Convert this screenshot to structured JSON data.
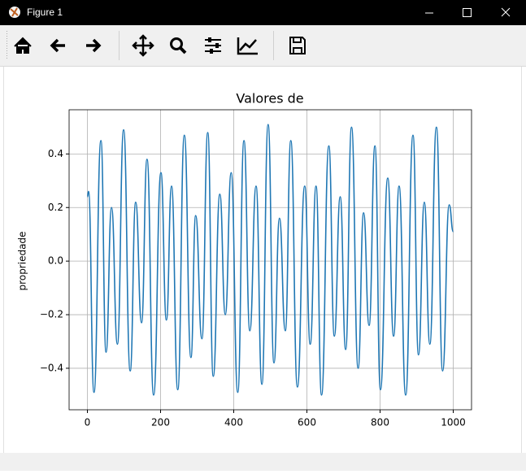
{
  "window": {
    "title": "Figure 1"
  },
  "chart_data": {
    "type": "line",
    "title": "Valores de",
    "y_label": "propriedade",
    "x": [
      0,
      3,
      18,
      37,
      51,
      66,
      82,
      99,
      117,
      132,
      148,
      163,
      181,
      201,
      216,
      230,
      247,
      265,
      283,
      296,
      313,
      329,
      344,
      362,
      377,
      393,
      411,
      428,
      444,
      461,
      477,
      494,
      510,
      525,
      541,
      556,
      574,
      594,
      609,
      625,
      640,
      660,
      675,
      691,
      706,
      722,
      740,
      755,
      770,
      786,
      801,
      821,
      837,
      852,
      870,
      890,
      905,
      921,
      936,
      954,
      971,
      989,
      1000
    ],
    "values": [
      0.24,
      0.26,
      -0.49,
      0.45,
      -0.34,
      0.2,
      -0.31,
      0.49,
      -0.41,
      0.22,
      -0.23,
      0.38,
      -0.5,
      0.33,
      -0.22,
      0.28,
      -0.48,
      0.47,
      -0.36,
      0.17,
      -0.29,
      0.48,
      -0.43,
      0.25,
      -0.2,
      0.33,
      -0.49,
      0.45,
      -0.26,
      0.28,
      -0.46,
      0.51,
      -0.38,
      0.16,
      -0.26,
      0.45,
      -0.47,
      0.28,
      -0.31,
      0.28,
      -0.5,
      0.43,
      -0.28,
      0.24,
      -0.33,
      0.5,
      -0.4,
      0.18,
      -0.24,
      0.43,
      -0.48,
      0.31,
      -0.28,
      0.28,
      -0.5,
      0.47,
      -0.35,
      0.22,
      -0.31,
      0.5,
      -0.41,
      0.21,
      0.11
    ],
    "color": "#1f77b4",
    "xlim": [
      -50,
      1050
    ],
    "ylim": [
      -0.555,
      0.565
    ],
    "xticks": [
      0,
      200,
      400,
      600,
      800,
      1000
    ],
    "yticks": [
      {
        "value": -0.4,
        "label": "−0.4"
      },
      {
        "value": -0.2,
        "label": "−0.2"
      },
      {
        "value": 0,
        "label": "0.0"
      },
      0.2,
      0.4
    ],
    "grid": true
  }
}
